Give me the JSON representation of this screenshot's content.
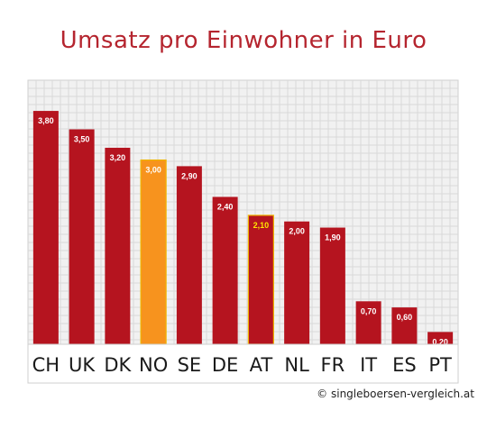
{
  "chart_data": {
    "type": "bar",
    "title": "Umsatz pro Einwohner in Euro",
    "categories": [
      "CH",
      "UK",
      "DK",
      "NO",
      "SE",
      "DE",
      "AT",
      "NL",
      "FR",
      "IT",
      "ES",
      "PT"
    ],
    "values": [
      3.8,
      3.5,
      3.2,
      3.0,
      2.9,
      2.4,
      2.1,
      2.0,
      1.9,
      0.7,
      0.6,
      0.2
    ],
    "value_labels": [
      "3,80",
      "3,50",
      "3,20",
      "3,00",
      "2,90",
      "2,40",
      "2,10",
      "2,00",
      "1,90",
      "0,70",
      "0,60",
      "0,20"
    ],
    "highlighted": [
      "NO",
      "AT"
    ],
    "ylim": [
      0,
      4.3
    ],
    "grid": true,
    "legend": "none"
  },
  "colors": {
    "bar": "#b5141f",
    "bar_highlight_no": "#f7931e",
    "highlight_outline": "#f0b400",
    "highlight_label": "#ffe600",
    "title": "#b5252f",
    "grid": "#d9d9d9",
    "plot_bg": "#f1f1f1"
  },
  "credit": "© singleboersen-vergleich.at"
}
